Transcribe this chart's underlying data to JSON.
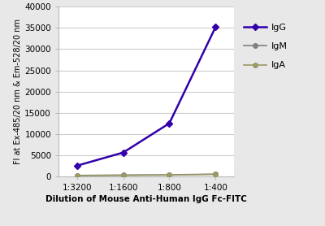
{
  "x_labels": [
    "1:3200",
    "1:1600",
    "1:800",
    "1:400"
  ],
  "x_positions": [
    0,
    1,
    2,
    3
  ],
  "IgG": [
    2500,
    5600,
    12500,
    35200
  ],
  "IgM": [
    200,
    300,
    350,
    500
  ],
  "IgA": [
    150,
    200,
    280,
    450
  ],
  "IgG_color": "#3300aa",
  "IgM_color": "#808080",
  "IgA_color": "#999966",
  "ylabel": "Fl at Ex-485/20 nm & Em-528/20 nm",
  "xlabel": "Dilution of Mouse Anti-Human IgG Fc-FITC",
  "ylim": [
    0,
    40000
  ],
  "yticks": [
    0,
    5000,
    10000,
    15000,
    20000,
    25000,
    30000,
    35000,
    40000
  ],
  "bg_color": "#e8e8e8",
  "plot_bg_color": "#ffffff",
  "grid_color": "#cccccc"
}
